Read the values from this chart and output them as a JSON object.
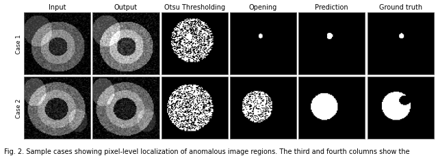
{
  "title": "",
  "col_labels": [
    "Input",
    "Output",
    "Otsu Thresholding",
    "Opening",
    "Prediction",
    "Ground truth"
  ],
  "row_labels": [
    "Case 1",
    "Case 2"
  ],
  "caption": "Fig. 2. Sample cases showing pixel-level localization of anomalous image regions. The third and fourth columns show the",
  "n_cols": 6,
  "n_rows": 2,
  "bg_color": "#000000",
  "fig_bg": "#ffffff",
  "label_fontsize": 7,
  "caption_fontsize": 7,
  "col_label_fontsize": 7,
  "row_label_fontsize": 6
}
